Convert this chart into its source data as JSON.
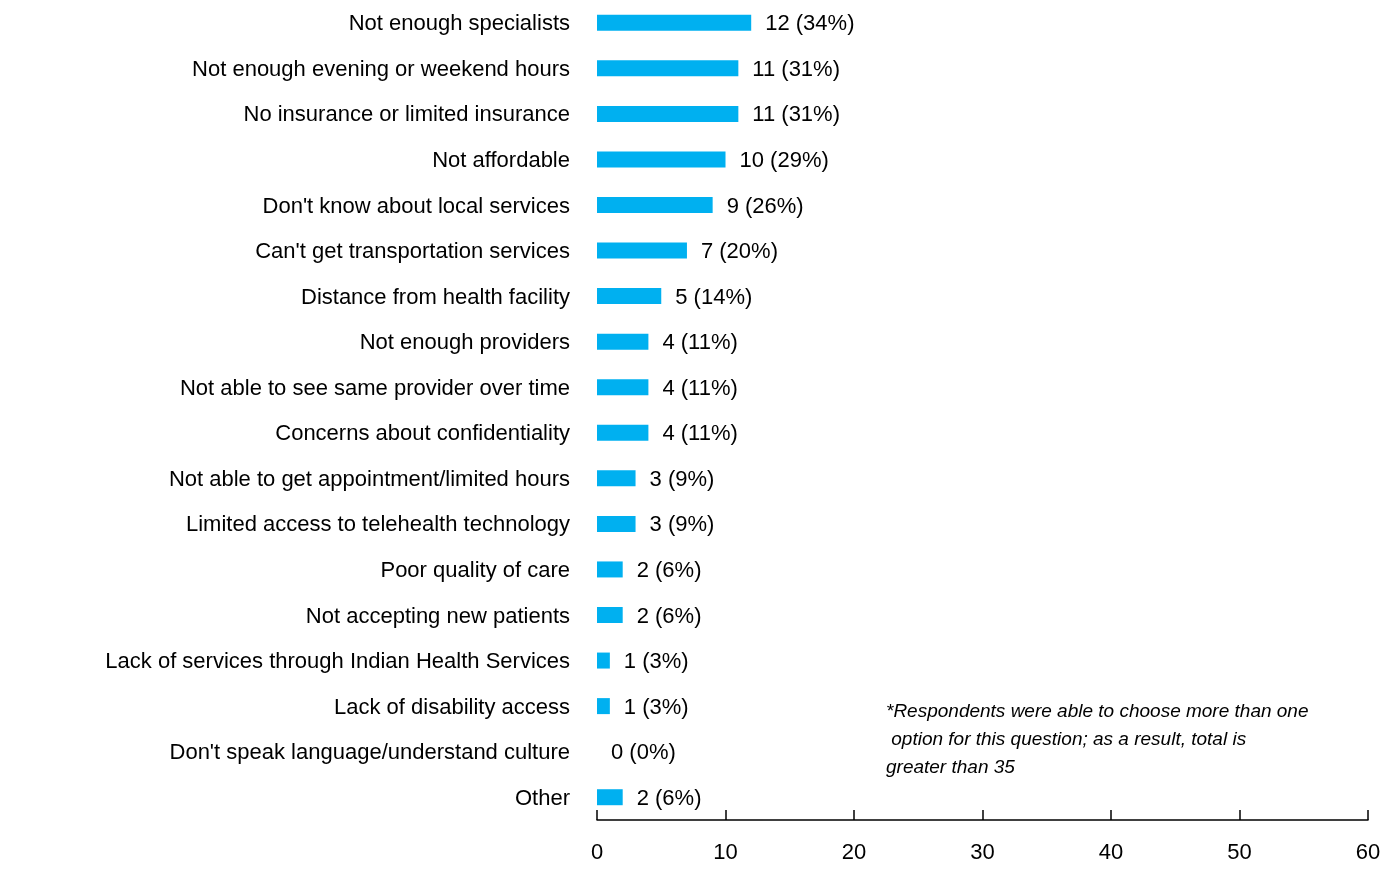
{
  "chart_data": {
    "type": "bar",
    "orientation": "horizontal",
    "categories": [
      "Not enough specialists",
      "Not enough evening or weekend hours",
      "No insurance or limited insurance",
      "Not affordable",
      "Don't know about local services",
      "Can't get transportation services",
      "Distance from health facility",
      "Not enough providers",
      "Not able to see same provider over time",
      "Concerns about confidentiality",
      "Not able to get appointment/limited hours",
      "Limited access to telehealth technology",
      "Poor quality of care",
      "Not accepting new patients",
      "Lack of services through Indian Health Services",
      "Lack of disability access",
      "Don't speak language/understand culture",
      "Other"
    ],
    "values": [
      12,
      11,
      11,
      10,
      9,
      7,
      5,
      4,
      4,
      4,
      3,
      3,
      2,
      2,
      1,
      1,
      0,
      2
    ],
    "value_labels": [
      "12 (34%)",
      "11 (31%)",
      "11 (31%)",
      "10 (29%)",
      "9 (26%)",
      "7 (20%)",
      "5 (14%)",
      "4 (11%)",
      "4 (11%)",
      "4 (11%)",
      "3 (9%)",
      "3 (9%)",
      "2 (6%)",
      "2 (6%)",
      "1 (3%)",
      "1 (3%)",
      "0 (0%)",
      "2 (6%)"
    ],
    "color": "#00b0f0",
    "xlim": [
      0,
      60
    ],
    "xticks": [
      0,
      10,
      20,
      30,
      40,
      50,
      60
    ],
    "annotations": [
      "*Respondents were able to choose more than one option for this question; as a result, total is greater than 35"
    ]
  }
}
